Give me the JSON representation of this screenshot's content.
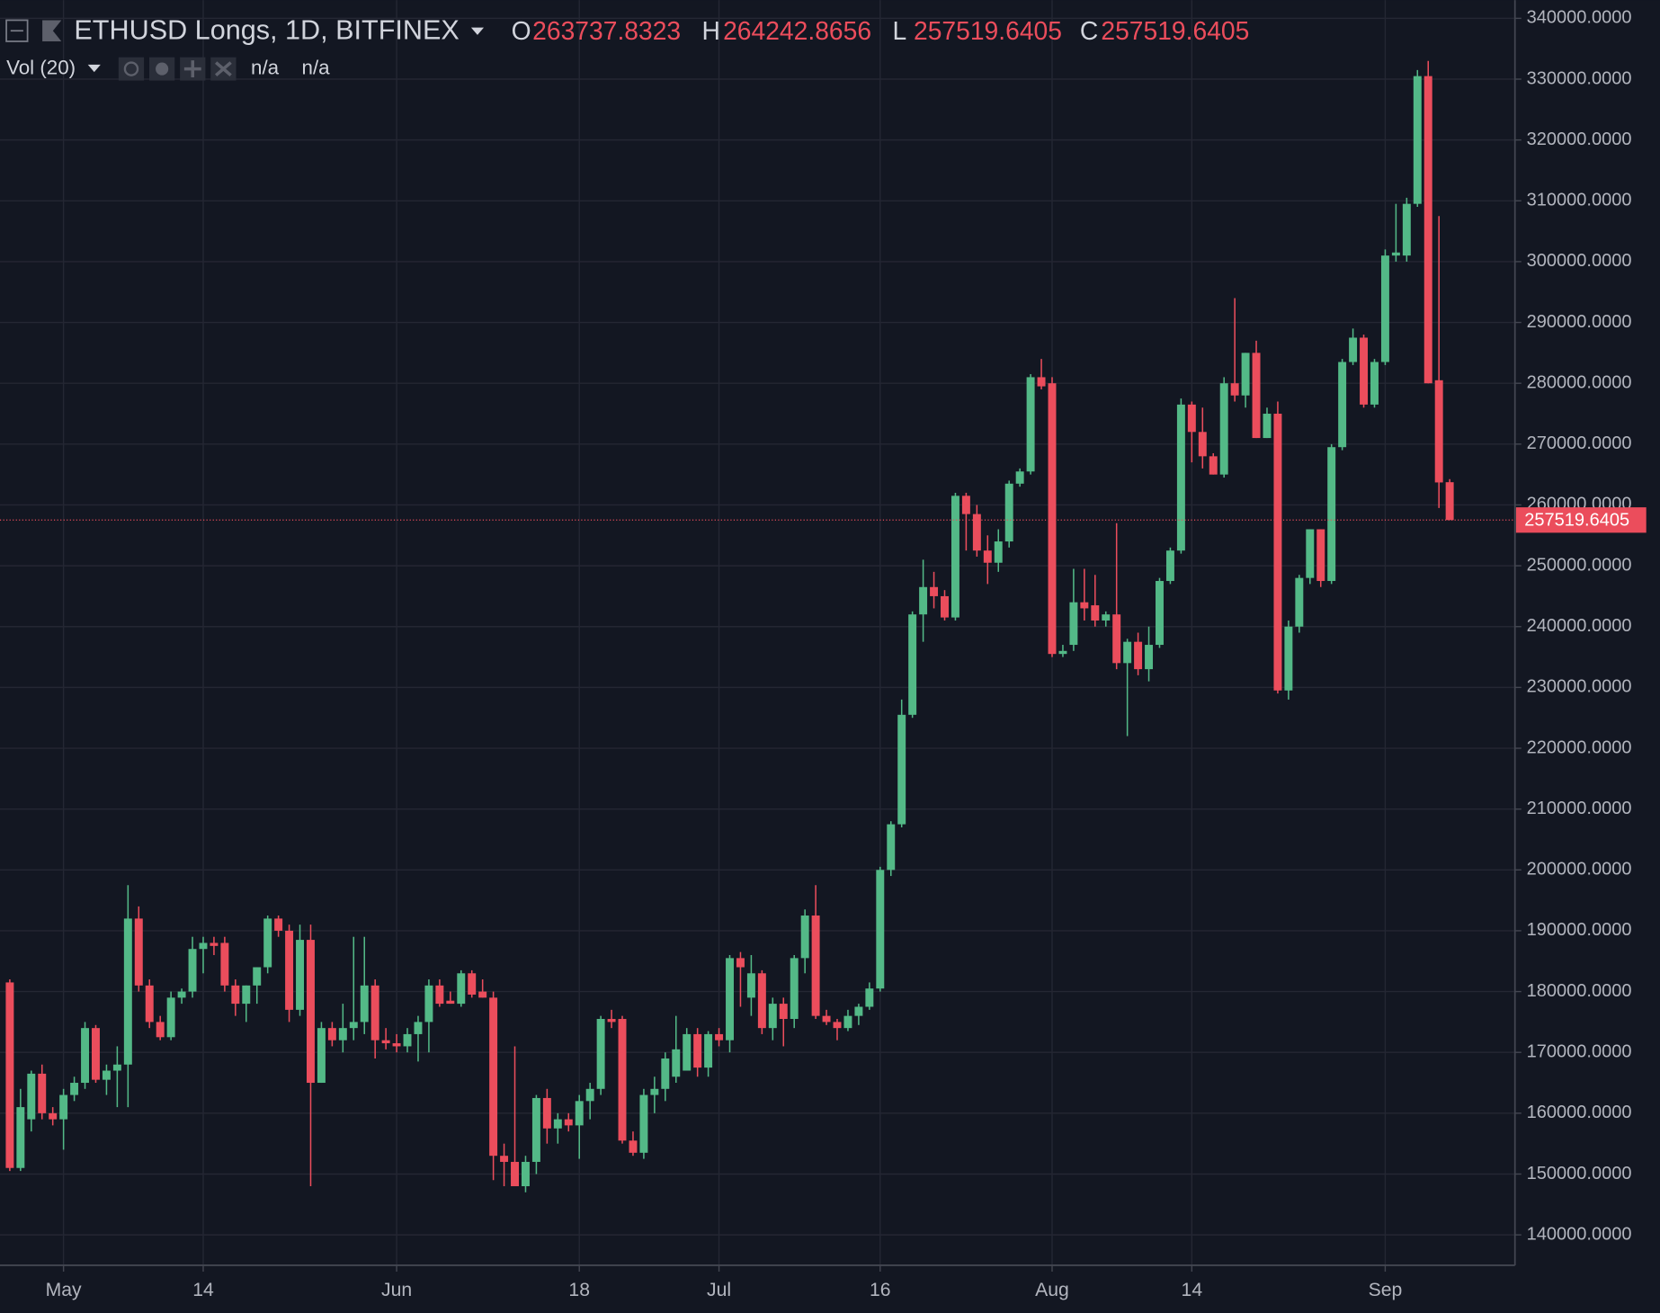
{
  "chart_data": {
    "type": "candlestick",
    "title": "ETHUSD Longs, 1D, BITFINEX",
    "ohlc_labels": [
      "O",
      "H",
      "L",
      "C"
    ],
    "indicator": "Vol (20)",
    "indicator_values": [
      "n/a",
      "n/a"
    ],
    "up_color": "#53b987",
    "down_color": "#eb4d5c",
    "grid": true,
    "ylim": [
      135000,
      343000
    ],
    "yticks": [
      {
        "value": 140000,
        "label": "140000.0000"
      },
      {
        "value": 150000,
        "label": "150000.0000"
      },
      {
        "value": 160000,
        "label": "160000.0000"
      },
      {
        "value": 170000,
        "label": "170000.0000"
      },
      {
        "value": 180000,
        "label": "180000.0000"
      },
      {
        "value": 190000,
        "label": "190000.0000"
      },
      {
        "value": 200000,
        "label": "200000.0000"
      },
      {
        "value": 210000,
        "label": "210000.0000"
      },
      {
        "value": 220000,
        "label": "220000.0000"
      },
      {
        "value": 230000,
        "label": "230000.0000"
      },
      {
        "value": 240000,
        "label": "240000.0000"
      },
      {
        "value": 250000,
        "label": "250000.0000"
      },
      {
        "value": 260000,
        "label": "260000.0000"
      },
      {
        "value": 270000,
        "label": "270000.0000"
      },
      {
        "value": 280000,
        "label": "280000.0000"
      },
      {
        "value": 290000,
        "label": "290000.0000"
      },
      {
        "value": 300000,
        "label": "300000.0000"
      },
      {
        "value": 310000,
        "label": "310000.0000"
      },
      {
        "value": 320000,
        "label": "320000.0000"
      },
      {
        "value": 330000,
        "label": "330000.0000"
      },
      {
        "value": 340000,
        "label": "340000.0000"
      }
    ],
    "xticks": [
      {
        "value": "May 1",
        "label": "May"
      },
      {
        "value": "May 14",
        "label": "14"
      },
      {
        "value": "Jun 1",
        "label": "Jun"
      },
      {
        "value": "Jun 18",
        "label": "18"
      },
      {
        "value": "Jul 1",
        "label": "Jul"
      },
      {
        "value": "Jul 16",
        "label": "16"
      },
      {
        "value": "Aug 1",
        "label": "Aug"
      },
      {
        "value": "Aug 14",
        "label": "14"
      },
      {
        "value": "Sep 1",
        "label": "Sep"
      }
    ],
    "x": [
      "Apr 26",
      "Apr 27",
      "Apr 28",
      "Apr 29",
      "Apr 30",
      "May 1",
      "May 2",
      "May 3",
      "May 4",
      "May 5",
      "May 6",
      "May 7",
      "May 8",
      "May 9",
      "May 10",
      "May 11",
      "May 12",
      "May 13",
      "May 14",
      "May 15",
      "May 16",
      "May 17",
      "May 18",
      "May 19",
      "May 20",
      "May 21",
      "May 22",
      "May 23",
      "May 24",
      "May 25",
      "May 26",
      "May 27",
      "May 28",
      "May 29",
      "May 30",
      "May 31",
      "Jun 1",
      "Jun 2",
      "Jun 3",
      "Jun 4",
      "Jun 5",
      "Jun 6",
      "Jun 7",
      "Jun 8",
      "Jun 9",
      "Jun 10",
      "Jun 11",
      "Jun 12",
      "Jun 13",
      "Jun 14",
      "Jun 15",
      "Jun 16",
      "Jun 17",
      "Jun 18",
      "Jun 19",
      "Jun 20",
      "Jun 21",
      "Jun 22",
      "Jun 23",
      "Jun 24",
      "Jun 25",
      "Jun 26",
      "Jun 27",
      "Jun 28",
      "Jun 29",
      "Jun 30",
      "Jul 1",
      "Jul 2",
      "Jul 3",
      "Jul 4",
      "Jul 5",
      "Jul 6",
      "Jul 7",
      "Jul 8",
      "Jul 9",
      "Jul 10",
      "Jul 11",
      "Jul 12",
      "Jul 13",
      "Jul 14",
      "Jul 15",
      "Jul 16",
      "Jul 17",
      "Jul 18",
      "Jul 19",
      "Jul 20",
      "Jul 21",
      "Jul 22",
      "Jul 23",
      "Jul 24",
      "Jul 25",
      "Jul 26",
      "Jul 27",
      "Jul 28",
      "Jul 29",
      "Jul 30",
      "Jul 31",
      "Aug 1",
      "Aug 2",
      "Aug 3",
      "Aug 4",
      "Aug 5",
      "Aug 6",
      "Aug 7",
      "Aug 8",
      "Aug 9",
      "Aug 10",
      "Aug 11",
      "Aug 12",
      "Aug 13",
      "Aug 14",
      "Aug 15",
      "Aug 16",
      "Aug 17",
      "Aug 18",
      "Aug 19",
      "Aug 20",
      "Aug 21",
      "Aug 22",
      "Aug 23",
      "Aug 24",
      "Aug 25",
      "Aug 26",
      "Aug 27",
      "Aug 28",
      "Aug 29",
      "Aug 30",
      "Aug 31",
      "Sep 1",
      "Sep 2",
      "Sep 3",
      "Sep 4",
      "Sep 5",
      "Sep 6",
      "Sep 7"
    ],
    "open": [
      181500,
      151000,
      159000,
      166500,
      160000,
      159000,
      163000,
      165000,
      174000,
      165500,
      167000,
      168000,
      192000,
      181000,
      175000,
      172500,
      179000,
      180000,
      187000,
      188000,
      188000,
      181000,
      178000,
      181000,
      184000,
      192000,
      190000,
      177000,
      188500,
      165000,
      174000,
      172000,
      174000,
      175000,
      181000,
      172000,
      171500,
      171000,
      173000,
      175000,
      181000,
      178500,
      178000,
      183000,
      180000,
      179000,
      153000,
      152000,
      148000,
      152000,
      162500,
      157500,
      159000,
      158000,
      162000,
      164000,
      175500,
      175500,
      155500,
      153500,
      163000,
      164000,
      166000,
      167000,
      173000,
      167500,
      173000,
      172000,
      185500,
      179000,
      183000,
      174000,
      178000,
      175500,
      185500,
      192500,
      176000,
      175000,
      174000,
      176000,
      177500,
      180500,
      200000,
      207500,
      225500,
      242000,
      246500,
      245000,
      241500,
      261500,
      258500,
      252500,
      250500,
      254000,
      263500,
      265500,
      281000,
      280000,
      235500,
      237000,
      244000,
      243500,
      241000,
      242000,
      234000,
      237500,
      233000,
      237000,
      247500,
      252500,
      276500,
      272000,
      268000,
      265000,
      280000,
      278000,
      285000,
      271000,
      275000,
      229500,
      240000,
      248000,
      256000,
      247500,
      269500,
      283500,
      287500,
      276500,
      283500,
      301000,
      301000,
      309500,
      330500,
      280500,
      263737.8323
    ],
    "high": [
      182000,
      164000,
      167000,
      168000,
      161000,
      164000,
      166000,
      175000,
      174500,
      168000,
      171000,
      197500,
      194000,
      182000,
      176000,
      180000,
      180500,
      189000,
      189000,
      189000,
      189000,
      182000,
      181000,
      184000,
      192500,
      192500,
      191000,
      191000,
      191000,
      175000,
      175000,
      178000,
      189000,
      189000,
      182000,
      174000,
      173000,
      174000,
      176000,
      182000,
      182000,
      180000,
      183500,
      183500,
      182000,
      180000,
      155000,
      171000,
      153000,
      163000,
      164000,
      160000,
      160000,
      163000,
      165000,
      176000,
      177000,
      176000,
      157000,
      164000,
      166000,
      170000,
      176000,
      174000,
      174000,
      173500,
      174000,
      186000,
      186500,
      186000,
      183500,
      179000,
      179000,
      186000,
      193500,
      197500,
      177000,
      175500,
      177000,
      178000,
      181500,
      200500,
      208000,
      228000,
      242500,
      251000,
      249000,
      246000,
      262000,
      262000,
      260000,
      255000,
      256000,
      264000,
      266000,
      281500,
      284000,
      281000,
      237000,
      249500,
      249500,
      248500,
      242500,
      257000,
      238000,
      239000,
      240000,
      248000,
      253000,
      277500,
      277000,
      276000,
      268500,
      281000,
      294000,
      285000,
      287000,
      276000,
      277000,
      241000,
      248500,
      256000,
      256000,
      270000,
      284000,
      289000,
      288000,
      284000,
      302000,
      309500,
      310500,
      331500,
      333000,
      307500,
      264242.8656
    ],
    "low": [
      150500,
      150500,
      157000,
      159000,
      158000,
      154000,
      162000,
      164000,
      165000,
      163000,
      161000,
      161000,
      180000,
      174000,
      172000,
      172000,
      178000,
      179000,
      183000,
      186000,
      180000,
      176000,
      175000,
      178000,
      183000,
      189000,
      175000,
      176000,
      148000,
      165000,
      171000,
      170000,
      172000,
      173000,
      169000,
      170500,
      170000,
      170000,
      168500,
      170000,
      177500,
      178000,
      177500,
      179000,
      179000,
      149000,
      148000,
      148000,
      147000,
      150000,
      155000,
      155000,
      157000,
      152500,
      159000,
      163000,
      174000,
      155000,
      153000,
      152500,
      160000,
      162000,
      165000,
      167000,
      166000,
      166000,
      171000,
      170000,
      177500,
      176000,
      173000,
      172000,
      171000,
      174000,
      183000,
      175500,
      174500,
      172000,
      173500,
      174500,
      177000,
      180000,
      199000,
      207000,
      225000,
      237500,
      243000,
      241000,
      241000,
      252500,
      251500,
      247000,
      249000,
      253000,
      263000,
      265000,
      279000,
      235000,
      235000,
      236000,
      241000,
      240000,
      240000,
      233000,
      222000,
      232000,
      231000,
      236500,
      247000,
      252000,
      267000,
      266000,
      265000,
      264500,
      277000,
      276000,
      271000,
      271000,
      229000,
      228000,
      239000,
      247000,
      246500,
      247000,
      269000,
      283000,
      276000,
      276000,
      283000,
      300000,
      300000,
      309000,
      280000,
      259500,
      257519.6405
    ],
    "close": [
      151000,
      161000,
      166500,
      160000,
      159000,
      163000,
      165000,
      174000,
      165500,
      167000,
      168000,
      192000,
      181000,
      175000,
      172500,
      179000,
      180000,
      187000,
      188000,
      187500,
      181000,
      178000,
      181000,
      184000,
      192000,
      190000,
      177000,
      188500,
      165000,
      174000,
      172000,
      174000,
      175000,
      181000,
      172000,
      171500,
      171000,
      173000,
      175000,
      181000,
      178000,
      178000,
      183000,
      179500,
      179000,
      153000,
      152000,
      148000,
      152000,
      162500,
      157500,
      159000,
      158000,
      162000,
      164000,
      175500,
      175000,
      155500,
      153500,
      163000,
      164000,
      169000,
      170500,
      173000,
      167500,
      173000,
      172000,
      185500,
      184000,
      183000,
      174000,
      178000,
      175500,
      185500,
      192500,
      176000,
      175000,
      174000,
      176000,
      177500,
      180500,
      200000,
      207500,
      225500,
      242000,
      246500,
      245000,
      241500,
      261500,
      258500,
      252500,
      250500,
      254000,
      263500,
      265500,
      281000,
      279500,
      235500,
      236000,
      244000,
      243000,
      241000,
      242000,
      234000,
      237500,
      233000,
      237000,
      247500,
      252500,
      276500,
      272000,
      268000,
      265000,
      280000,
      278000,
      285000,
      271000,
      275000,
      229500,
      240000,
      248000,
      256000,
      247500,
      269500,
      283500,
      287500,
      276500,
      283500,
      301000,
      301500,
      309500,
      330500,
      280000,
      263700,
      257519.6405
    ]
  }
}
